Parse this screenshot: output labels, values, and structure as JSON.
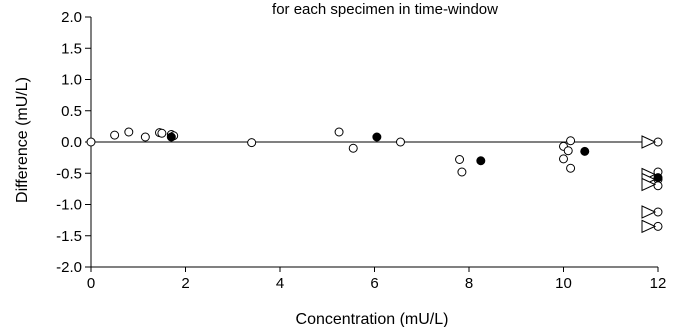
{
  "chart_data": {
    "type": "scatter",
    "title": "for each specimen in time-window",
    "xlabel": "Concentration (mU/L)",
    "ylabel": "Difference (mU/L)",
    "xlim": [
      0,
      12
    ],
    "ylim": [
      -2.0,
      2.0
    ],
    "xticks": [
      "0",
      "2",
      "4",
      "6",
      "8",
      "10",
      "12"
    ],
    "yticks": [
      "2.0",
      "1.5",
      "1.0",
      "0.5",
      "0.0",
      "-0.5",
      "-1.0",
      "-1.5",
      "-2.0"
    ],
    "grid": false,
    "reference_line_y": 0.0,
    "series": [
      {
        "marker": "open-circle",
        "points": [
          {
            "x": 0.0,
            "y": 0.0
          },
          {
            "x": 0.5,
            "y": 0.11
          },
          {
            "x": 0.8,
            "y": 0.16
          },
          {
            "x": 1.15,
            "y": 0.08
          },
          {
            "x": 1.45,
            "y": 0.15
          },
          {
            "x": 1.5,
            "y": 0.14
          },
          {
            "x": 1.7,
            "y": 0.12
          },
          {
            "x": 1.75,
            "y": 0.1
          },
          {
            "x": 3.4,
            "y": -0.01
          },
          {
            "x": 5.25,
            "y": 0.16
          },
          {
            "x": 5.55,
            "y": -0.1
          },
          {
            "x": 6.55,
            "y": 0.0
          },
          {
            "x": 7.8,
            "y": -0.28
          },
          {
            "x": 7.85,
            "y": -0.48
          },
          {
            "x": 10.0,
            "y": -0.07
          },
          {
            "x": 10.0,
            "y": -0.27
          },
          {
            "x": 10.1,
            "y": -0.14
          },
          {
            "x": 10.15,
            "y": 0.02
          },
          {
            "x": 10.15,
            "y": -0.42
          },
          {
            "x": 12.0,
            "y": 0.0
          },
          {
            "x": 12.0,
            "y": -0.48
          },
          {
            "x": 12.0,
            "y": -0.6
          },
          {
            "x": 12.0,
            "y": -0.7
          },
          {
            "x": 12.0,
            "y": -1.12
          },
          {
            "x": 12.0,
            "y": -1.35
          }
        ]
      },
      {
        "marker": "filled-circle",
        "points": [
          {
            "x": 1.7,
            "y": 0.08
          },
          {
            "x": 6.05,
            "y": 0.08
          },
          {
            "x": 8.25,
            "y": -0.3
          },
          {
            "x": 10.45,
            "y": -0.15
          },
          {
            "x": 12.0,
            "y": -0.57
          }
        ]
      },
      {
        "marker": "right-arrow",
        "points": [
          {
            "x": 12.0,
            "y": 0.0
          },
          {
            "x": 12.0,
            "y": -0.52
          },
          {
            "x": 12.0,
            "y": -0.6
          },
          {
            "x": 12.0,
            "y": -0.68
          },
          {
            "x": 12.0,
            "y": -1.12
          },
          {
            "x": 12.0,
            "y": -1.35
          }
        ]
      }
    ]
  }
}
